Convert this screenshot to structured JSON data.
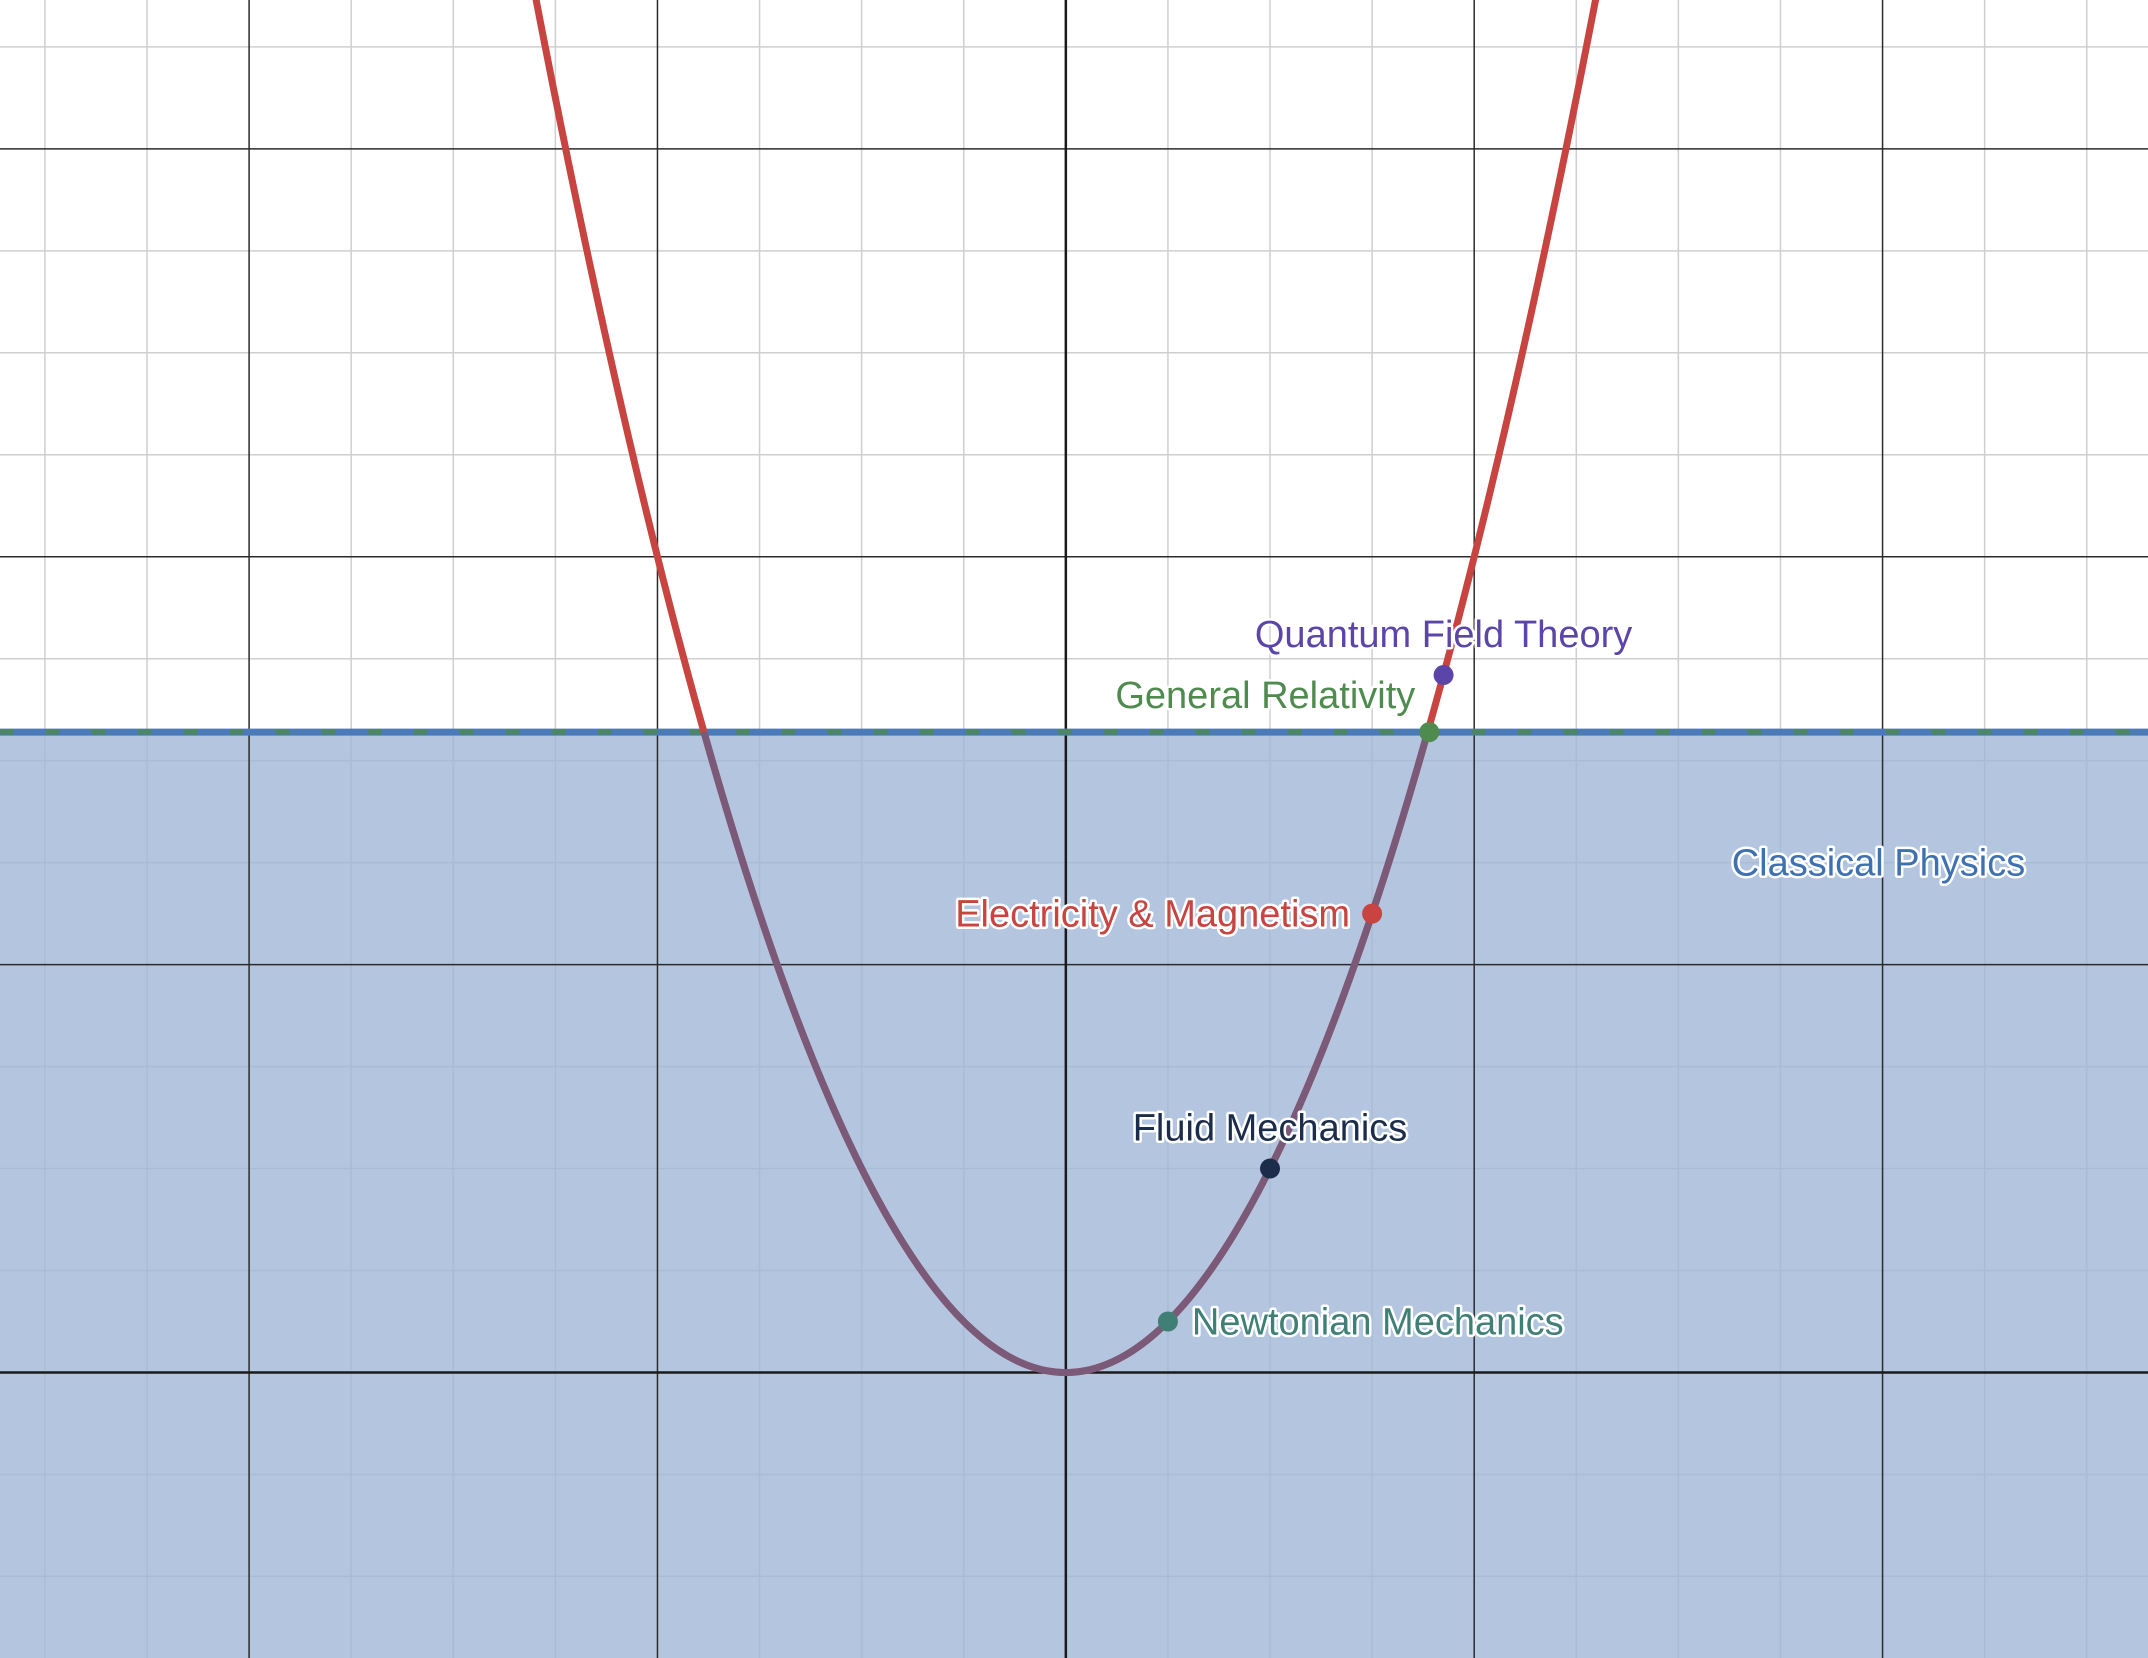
{
  "chart_data": {
    "type": "line",
    "title": "",
    "xlabel": "",
    "ylabel": "",
    "xlim": [
      -5.22,
      5.3
    ],
    "ylim": [
      -1.4,
      6.73
    ],
    "major_step": 2,
    "minor_step": 0.5,
    "grid": true,
    "curve": {
      "expression": "y = x^2",
      "a": 1,
      "color": "#c74440"
    },
    "threshold": {
      "y": 3.14,
      "label": "Classical Physics",
      "label_x": 3.98,
      "label_y": 2.5,
      "fill_color": "#9fb6d6",
      "line_color": "#4a7ab8",
      "dash_color": "#4f8a4f",
      "label_color": "#3f70b0"
    },
    "points": [
      {
        "label": "Quantum Field Theory",
        "x": 1.85,
        "y": 3.42,
        "color": "#5b45a8",
        "label_pos": "above"
      },
      {
        "label": "General Relativity",
        "x": 1.78,
        "y": 3.14,
        "color": "#4f8a4f",
        "label_pos": "above-left"
      },
      {
        "label": "Electricity & Magnetism",
        "x": 1.5,
        "y": 2.25,
        "color": "#c74440",
        "label_pos": "left"
      },
      {
        "label": "Fluid Mechanics",
        "x": 1.0,
        "y": 1.0,
        "color": "#1b2d4a",
        "label_pos": "above"
      },
      {
        "label": "Newtonian Mechanics",
        "x": 0.5,
        "y": 0.25,
        "color": "#3f7f76",
        "label_pos": "right"
      }
    ]
  }
}
